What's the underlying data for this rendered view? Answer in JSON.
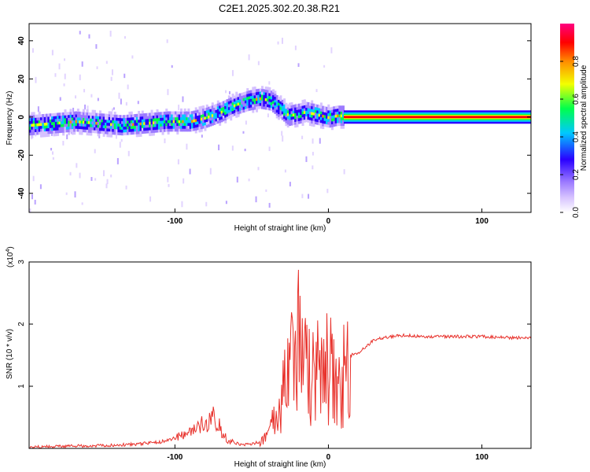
{
  "title": "C2E1.2025.302.20.38.R21",
  "colors": {
    "snr_line": "#e8312b",
    "axis": "#000000",
    "colormap": [
      "#ffffff",
      "#d6c2ff",
      "#9c7bff",
      "#2a00ff",
      "#00c8ff",
      "#00ff4c",
      "#f3ff00",
      "#ff8c00",
      "#ff0000",
      "#ff0080"
    ]
  },
  "chart_data": [
    {
      "type": "heatmap",
      "title": "C2E1.2025.302.20.38.R21",
      "xlabel": "Height of straight line (km)",
      "ylabel": "Frequency (Hz)",
      "xlim": [
        -195,
        132
      ],
      "ylim": [
        -50,
        49
      ],
      "x_ticks": [
        -100,
        0,
        100
      ],
      "x_tick_labels": [
        "-100",
        "0",
        "100"
      ],
      "y_ticks": [
        -40,
        -20,
        0,
        20,
        40
      ],
      "y_tick_labels": [
        "-40",
        "-20",
        "0",
        "20",
        "40"
      ],
      "colorbar": {
        "label": "Normalized spectral amplitude",
        "range": [
          0,
          1
        ],
        "ticks": [
          0.0,
          0.2,
          0.4,
          0.6,
          0.8
        ],
        "tick_labels": [
          "0.0",
          "0.2",
          "0.4",
          "0.6",
          "0.8"
        ]
      },
      "ridge": {
        "x": [
          -195,
          -180,
          -165,
          -150,
          -135,
          -120,
          -105,
          -90,
          -80,
          -70,
          -60,
          -52,
          -45,
          -38,
          -32,
          -26,
          -20,
          -15,
          -10,
          -5,
          0,
          5,
          10,
          132
        ],
        "frequency": [
          -5,
          -4,
          -3,
          -4,
          -5,
          -4,
          -3,
          -3,
          -1,
          2,
          6,
          8,
          9,
          8,
          4,
          0,
          1,
          2,
          1,
          0,
          -1,
          0,
          0,
          0
        ]
      }
    },
    {
      "type": "line",
      "xlabel": "Height of straight line (km)",
      "ylabel": "SNR (10 * v/v)",
      "y_multiplier": "(x10",
      "y_multiplier_exp": "4",
      "xlim": [
        -195,
        132
      ],
      "ylim": [
        0,
        3
      ],
      "x_ticks": [
        -100,
        0,
        100
      ],
      "x_tick_labels": [
        "-100",
        "0",
        "100"
      ],
      "y_ticks": [
        1,
        2,
        3
      ],
      "y_tick_labels": [
        "1",
        "2",
        "3"
      ],
      "series": [
        {
          "x": [
            -195,
            -160,
            -130,
            -110,
            -95,
            -85,
            -80,
            -76,
            -73,
            -70,
            -65,
            -55,
            -45,
            -38,
            -34,
            -30,
            -26,
            -22,
            -20,
            -18,
            -16,
            -13,
            -10,
            -6,
            0,
            5,
            10,
            15,
            20,
            25,
            30,
            40,
            50,
            60,
            80,
            100,
            120,
            132
          ],
          "values": [
            0.02,
            0.04,
            0.06,
            0.1,
            0.2,
            0.3,
            0.45,
            0.55,
            0.45,
            0.3,
            0.12,
            0.05,
            0.1,
            0.3,
            0.6,
            1.0,
            1.4,
            1.8,
            2.4,
            2.1,
            1.6,
            1.3,
            1.4,
            1.5,
            1.45,
            1.3,
            1.35,
            1.5,
            1.55,
            1.65,
            1.75,
            1.8,
            1.82,
            1.8,
            1.8,
            1.8,
            1.78,
            1.78
          ]
        }
      ]
    }
  ]
}
